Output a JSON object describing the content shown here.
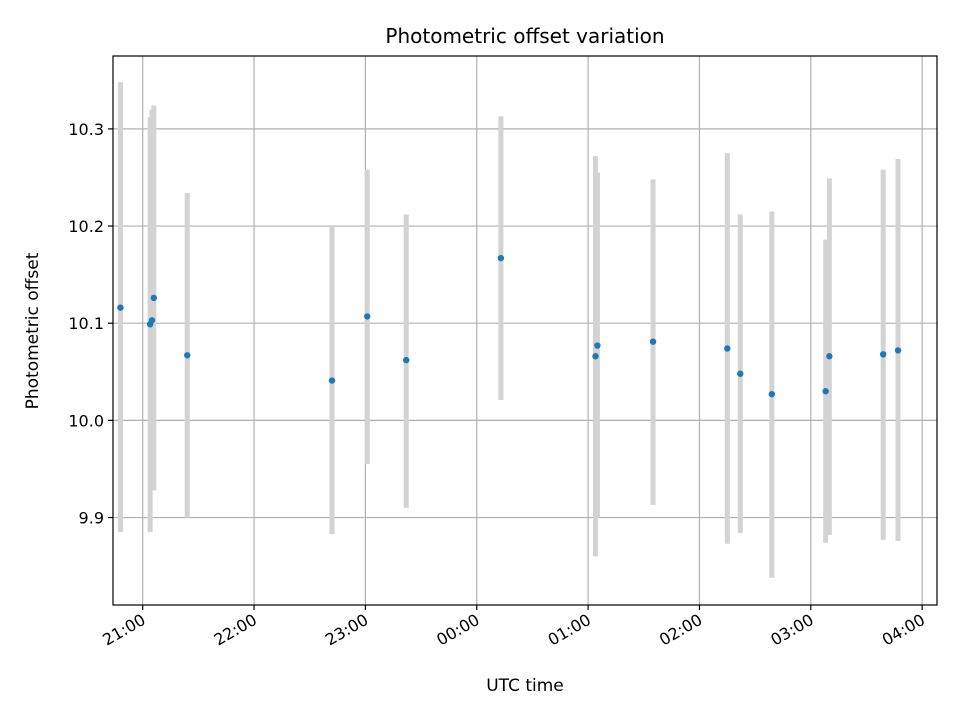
{
  "chart_data": {
    "type": "scatter",
    "title": "Photometric offset variation",
    "xlabel": "UTC time",
    "ylabel": "Photometric offset",
    "grid": true,
    "x_format": "HH:MM",
    "xlim": [
      "20:44",
      "04:08"
    ],
    "ylim": [
      9.81,
      10.375
    ],
    "x_ticks": [
      "21:00",
      "22:00",
      "23:00",
      "00:00",
      "01:00",
      "02:00",
      "03:00",
      "04:00"
    ],
    "y_ticks": [
      "9.9",
      "10.0",
      "10.1",
      "10.2",
      "10.3"
    ],
    "point_color": "#1f77b4",
    "errorbar_color": "#d3d3d3",
    "points": [
      {
        "x": "20:48",
        "y": 10.116,
        "ylow": 9.885,
        "yhigh": 10.348
      },
      {
        "x": "21:04",
        "y": 10.099,
        "ylow": 9.885,
        "yhigh": 10.312
      },
      {
        "x": "21:05",
        "y": 10.103,
        "ylow": 9.93,
        "yhigh": 10.32
      },
      {
        "x": "21:06",
        "y": 10.126,
        "ylow": 9.928,
        "yhigh": 10.324
      },
      {
        "x": "21:24",
        "y": 10.067,
        "ylow": 9.9,
        "yhigh": 10.234
      },
      {
        "x": "22:42",
        "y": 10.041,
        "ylow": 9.883,
        "yhigh": 10.2
      },
      {
        "x": "23:01",
        "y": 10.107,
        "ylow": 9.955,
        "yhigh": 10.258
      },
      {
        "x": "23:22",
        "y": 10.062,
        "ylow": 9.91,
        "yhigh": 10.212
      },
      {
        "x": "00:13",
        "y": 10.167,
        "ylow": 10.021,
        "yhigh": 10.313
      },
      {
        "x": "01:04",
        "y": 10.066,
        "ylow": 9.86,
        "yhigh": 10.272
      },
      {
        "x": "01:05",
        "y": 10.077,
        "ylow": 9.9,
        "yhigh": 10.255
      },
      {
        "x": "01:35",
        "y": 10.081,
        "ylow": 9.913,
        "yhigh": 10.248
      },
      {
        "x": "02:15",
        "y": 10.074,
        "ylow": 9.873,
        "yhigh": 10.275
      },
      {
        "x": "02:22",
        "y": 10.048,
        "ylow": 9.884,
        "yhigh": 10.212
      },
      {
        "x": "02:39",
        "y": 10.027,
        "ylow": 9.838,
        "yhigh": 10.215
      },
      {
        "x": "03:08",
        "y": 10.03,
        "ylow": 9.874,
        "yhigh": 10.186
      },
      {
        "x": "03:10",
        "y": 10.066,
        "ylow": 9.882,
        "yhigh": 10.249
      },
      {
        "x": "03:39",
        "y": 10.068,
        "ylow": 9.877,
        "yhigh": 10.258
      },
      {
        "x": "03:47",
        "y": 10.072,
        "ylow": 9.876,
        "yhigh": 10.269
      }
    ]
  }
}
